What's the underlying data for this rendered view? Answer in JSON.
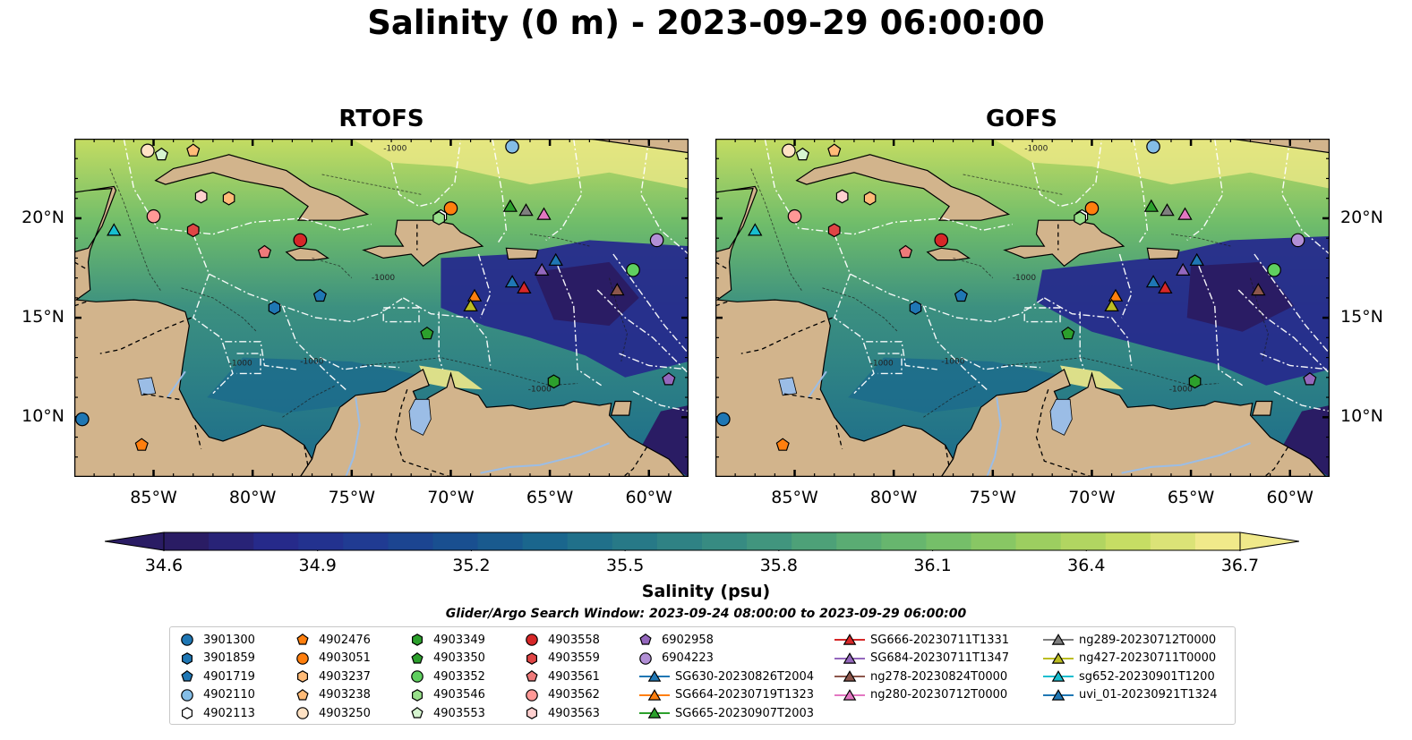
{
  "title": "Salinity (0 m) - 2023-09-29 06:00:00",
  "panels": [
    {
      "id": "rtofs",
      "title": "RTOFS"
    },
    {
      "id": "gofs",
      "title": "GOFS"
    }
  ],
  "map": {
    "lon_range": [
      -89,
      -58
    ],
    "lat_range": [
      7,
      24
    ],
    "lon_ticks": [
      "85°W",
      "80°W",
      "75°W",
      "70°W",
      "65°W",
      "60°W"
    ],
    "lon_tick_values": [
      -85,
      -80,
      -75,
      -70,
      -65,
      -60
    ],
    "lat_ticks": [
      "20°N",
      "15°N",
      "10°N"
    ],
    "lat_tick_values": [
      20,
      15,
      10
    ],
    "land_color": "#d2b48c",
    "lake_color": "#9bbde6",
    "eez_line_color": "#ffffff",
    "border_line_color": "#000000",
    "bathymetry_contour_label": "-1000"
  },
  "colorbar": {
    "label": "Salinity (psu)",
    "ticks": [
      "34.6",
      "34.9",
      "35.2",
      "35.5",
      "35.8",
      "36.1",
      "36.4",
      "36.7"
    ],
    "min": 34.6,
    "max": 36.7,
    "colormap": [
      "#2a1c64",
      "#262b8c",
      "#1f3c93",
      "#18528f",
      "#1b6a8c",
      "#2a7d86",
      "#3c9080",
      "#55a875",
      "#70bd6a",
      "#98cd60",
      "#c4dc62",
      "#f0e98a"
    ],
    "extend": "both"
  },
  "search_window": "Glider/Argo Search Window: 2023-09-24 08:00:00 to 2023-09-29 06:00:00",
  "legend": [
    {
      "label": "3901300",
      "marker": "circle",
      "color": "#1f77b4"
    },
    {
      "label": "3901859",
      "marker": "hexagon",
      "color": "#1f77b4"
    },
    {
      "label": "4901719",
      "marker": "pentagon",
      "color": "#1f77b4"
    },
    {
      "label": "4902110",
      "marker": "circle",
      "color": "#84bde6"
    },
    {
      "label": "4902113",
      "marker": "hexagon",
      "color": "#ffffff"
    },
    {
      "label": "4902476",
      "marker": "pentagon",
      "color": "#ff7f0e"
    },
    {
      "label": "4903051",
      "marker": "circle",
      "color": "#ff7f0e"
    },
    {
      "label": "4903237",
      "marker": "hexagon",
      "color": "#ffbb78"
    },
    {
      "label": "4903238",
      "marker": "pentagon",
      "color": "#ffbb78"
    },
    {
      "label": "4903250",
      "marker": "circle",
      "color": "#ffe2c4"
    },
    {
      "label": "4903349",
      "marker": "hexagon",
      "color": "#2ca02c"
    },
    {
      "label": "4903350",
      "marker": "pentagon",
      "color": "#2ca02c"
    },
    {
      "label": "4903352",
      "marker": "circle",
      "color": "#5fcf5f"
    },
    {
      "label": "4903546",
      "marker": "hexagon",
      "color": "#98df8a"
    },
    {
      "label": "4903553",
      "marker": "pentagon",
      "color": "#d6f5d0"
    },
    {
      "label": "4903558",
      "marker": "circle",
      "color": "#d62728"
    },
    {
      "label": "4903559",
      "marker": "hexagon",
      "color": "#e04545"
    },
    {
      "label": "4903561",
      "marker": "pentagon",
      "color": "#ee7a7a"
    },
    {
      "label": "4903562",
      "marker": "circle",
      "color": "#ff9896"
    },
    {
      "label": "4903563",
      "marker": "hexagon",
      "color": "#ffd0cf"
    },
    {
      "label": "6902958",
      "marker": "pentagon",
      "color": "#9467bd"
    },
    {
      "label": "6904223",
      "marker": "circle",
      "color": "#b28fd6"
    },
    {
      "label": "SG630-20230826T2004",
      "marker": "triangle",
      "color": "#1f77b4"
    },
    {
      "label": "SG664-20230719T1323",
      "marker": "triangle",
      "color": "#ff7f0e"
    },
    {
      "label": "SG665-20230907T2003",
      "marker": "triangle",
      "color": "#2ca02c"
    },
    {
      "label": "SG666-20230711T1331",
      "marker": "triangle",
      "color": "#d62728"
    },
    {
      "label": "SG684-20230711T1347",
      "marker": "triangle",
      "color": "#9467bd"
    },
    {
      "label": "ng278-20230824T0000",
      "marker": "triangle",
      "color": "#8c564b"
    },
    {
      "label": "ng280-20230712T0000",
      "marker": "triangle",
      "color": "#e377c2"
    },
    {
      "label": "ng289-20230712T0000",
      "marker": "triangle",
      "color": "#7f7f7f"
    },
    {
      "label": "ng427-20230711T0000",
      "marker": "triangle",
      "color": "#bcbd22"
    },
    {
      "label": "sg652-20230901T1200",
      "marker": "triangle",
      "color": "#17becf"
    },
    {
      "label": "uvi_01-20230921T1324",
      "marker": "triangle",
      "color": "#1f77b4"
    }
  ],
  "observations": [
    {
      "id": "3901300",
      "lon": -88.6,
      "lat": 9.9
    },
    {
      "id": "4902476",
      "lon": -85.6,
      "lat": 8.6
    },
    {
      "id": "4903250",
      "lon": -85.3,
      "lat": 23.4
    },
    {
      "id": "4903553",
      "lon": -84.6,
      "lat": 23.2
    },
    {
      "id": "4903238",
      "lon": -83.0,
      "lat": 23.4
    },
    {
      "id": "4903563",
      "lon": -82.6,
      "lat": 21.1
    },
    {
      "id": "4903562",
      "lon": -85.0,
      "lat": 20.1
    },
    {
      "id": "sg652-20230901T1200",
      "lon": -87.0,
      "lat": 19.4
    },
    {
      "id": "4903559",
      "lon": -83.0,
      "lat": 19.4
    },
    {
      "id": "4903561",
      "lon": -79.4,
      "lat": 18.3
    },
    {
      "id": "4903558",
      "lon": -77.6,
      "lat": 18.9
    },
    {
      "id": "3901859",
      "lon": -78.9,
      "lat": 15.5
    },
    {
      "id": "4901719",
      "lon": -76.6,
      "lat": 16.1
    },
    {
      "id": "4903051",
      "lon": -70.0,
      "lat": 20.5
    },
    {
      "id": "4902113",
      "lon": -70.5,
      "lat": 20.1
    },
    {
      "id": "4902110",
      "lon": -66.9,
      "lat": 23.6
    },
    {
      "id": "SG665-20230907T2003",
      "lon": -67.0,
      "lat": 20.6
    },
    {
      "id": "ng289-20230712T0000",
      "lon": -66.2,
      "lat": 20.4
    },
    {
      "id": "ng280-20230712T0000",
      "lon": -65.3,
      "lat": 20.2
    },
    {
      "id": "SG684-20230711T1347",
      "lon": -65.4,
      "lat": 17.4
    },
    {
      "id": "uvi_01-20230921T1324",
      "lon": -64.7,
      "lat": 17.9
    },
    {
      "id": "SG630-20230826T2004",
      "lon": -66.9,
      "lat": 16.8
    },
    {
      "id": "SG666-20230711T1331",
      "lon": -66.3,
      "lat": 16.5
    },
    {
      "id": "SG664-20230719T1323",
      "lon": -68.8,
      "lat": 16.1
    },
    {
      "id": "ng427-20230711T0000",
      "lon": -69.0,
      "lat": 15.6
    },
    {
      "id": "4903350",
      "lon": -71.2,
      "lat": 14.2
    },
    {
      "id": "4903349",
      "lon": -64.8,
      "lat": 11.8
    },
    {
      "id": "4903352",
      "lon": -60.8,
      "lat": 17.4
    },
    {
      "id": "6904223",
      "lon": -59.6,
      "lat": 18.9
    },
    {
      "id": "6902958",
      "lon": -59.0,
      "lat": 11.9
    },
    {
      "id": "4903237",
      "lon": -81.2,
      "lat": 21.0
    },
    {
      "id": "4903546",
      "lon": -70.6,
      "lat": 20.0
    },
    {
      "id": "ng278-20230824T0000",
      "lon": -61.6,
      "lat": 16.4
    }
  ]
}
